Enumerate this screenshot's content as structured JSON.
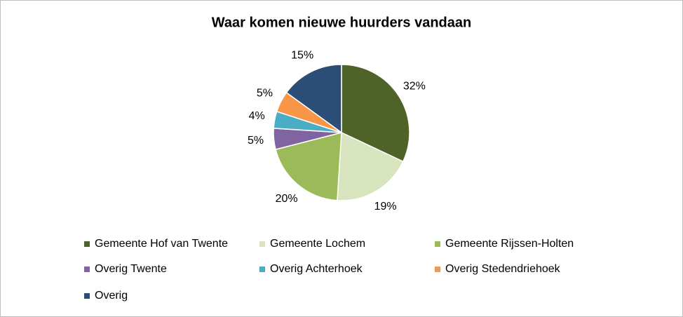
{
  "chart_data": {
    "type": "pie",
    "title": "Waar komen nieuwe huurders vandaan",
    "categories": [
      "Gemeente Hof van Twente",
      "Gemeente Lochem",
      "Gemeente Rijssen-Holten",
      "Overig Twente",
      "Overig Achterhoek",
      "Overig Stedendriehoek",
      "Overig"
    ],
    "values": [
      32,
      19,
      20,
      5,
      4,
      5,
      15
    ],
    "value_labels": [
      "32%",
      "19%",
      "20%",
      "5%",
      "4%",
      "5%",
      "15%"
    ],
    "colors": [
      "#4f6228",
      "#d7e4bd",
      "#9bbb59",
      "#8064a2",
      "#4bacc6",
      "#f79646",
      "#2c4d75"
    ],
    "legend": "bottom"
  }
}
